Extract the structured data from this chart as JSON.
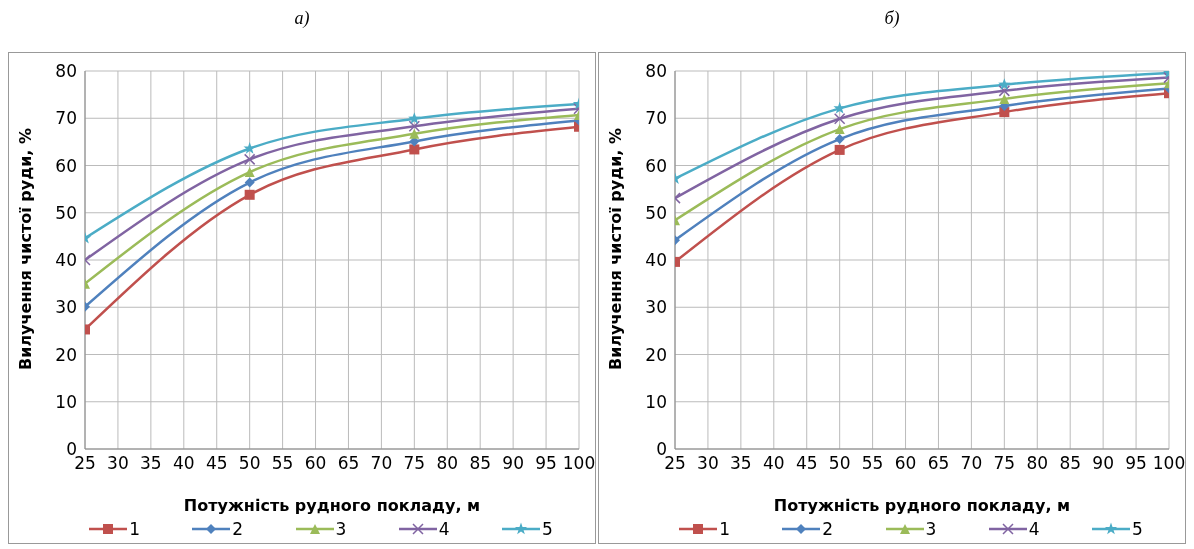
{
  "chart_data": [
    {
      "type": "line",
      "title": "а)",
      "xlabel": "Потужність рудного покладу, м",
      "ylabel": "Вилучення чистої руди, %",
      "x": [
        25,
        50,
        75,
        100
      ],
      "xlim": [
        25,
        100
      ],
      "xticks": [
        25,
        30,
        35,
        40,
        45,
        50,
        55,
        60,
        65,
        70,
        75,
        80,
        85,
        90,
        95,
        100
      ],
      "ylim": [
        0,
        80
      ],
      "yticks": [
        0,
        10,
        20,
        30,
        40,
        50,
        60,
        70,
        80
      ],
      "grid": true,
      "legend": "bottom",
      "series": [
        {
          "name": "1",
          "color": "#c0504d",
          "marker": "square",
          "values": [
            25.3,
            53.8,
            63.4,
            68.2
          ]
        },
        {
          "name": "2",
          "color": "#4f81bd",
          "marker": "diamond",
          "values": [
            30.1,
            56.4,
            65.1,
            69.5
          ]
        },
        {
          "name": "3",
          "color": "#9bbb59",
          "marker": "triangle",
          "values": [
            35,
            58.6,
            66.7,
            70.7
          ]
        },
        {
          "name": "4",
          "color": "#8064a2",
          "marker": "cross",
          "values": [
            40,
            61.3,
            68.3,
            72
          ]
        },
        {
          "name": "5",
          "color": "#4bacc6",
          "marker": "star",
          "values": [
            44.6,
            63.6,
            69.9,
            73
          ]
        }
      ]
    },
    {
      "type": "line",
      "title": "б)",
      "xlabel": "Потужність рудного покладу, м",
      "ylabel": "Вилучення чистої руди, %",
      "x": [
        25,
        50,
        75,
        100
      ],
      "xlim": [
        25,
        100
      ],
      "xticks": [
        25,
        30,
        35,
        40,
        45,
        50,
        55,
        60,
        65,
        70,
        75,
        80,
        85,
        90,
        95,
        100
      ],
      "ylim": [
        0,
        80
      ],
      "yticks": [
        0,
        10,
        20,
        30,
        40,
        50,
        60,
        70,
        80
      ],
      "grid": true,
      "legend": "bottom",
      "series": [
        {
          "name": "1",
          "color": "#c0504d",
          "marker": "square",
          "values": [
            39.6,
            63.3,
            71.3,
            75.3
          ]
        },
        {
          "name": "2",
          "color": "#4f81bd",
          "marker": "diamond",
          "values": [
            44.2,
            65.6,
            72.6,
            76.3
          ]
        },
        {
          "name": "3",
          "color": "#9bbb59",
          "marker": "triangle",
          "values": [
            48.4,
            67.7,
            74.1,
            77.4
          ]
        },
        {
          "name": "4",
          "color": "#8064a2",
          "marker": "cross",
          "values": [
            53.1,
            69.9,
            75.8,
            78.6
          ]
        },
        {
          "name": "5",
          "color": "#4bacc6",
          "marker": "star",
          "values": [
            57.2,
            72.1,
            77.1,
            79.6
          ]
        }
      ]
    }
  ]
}
